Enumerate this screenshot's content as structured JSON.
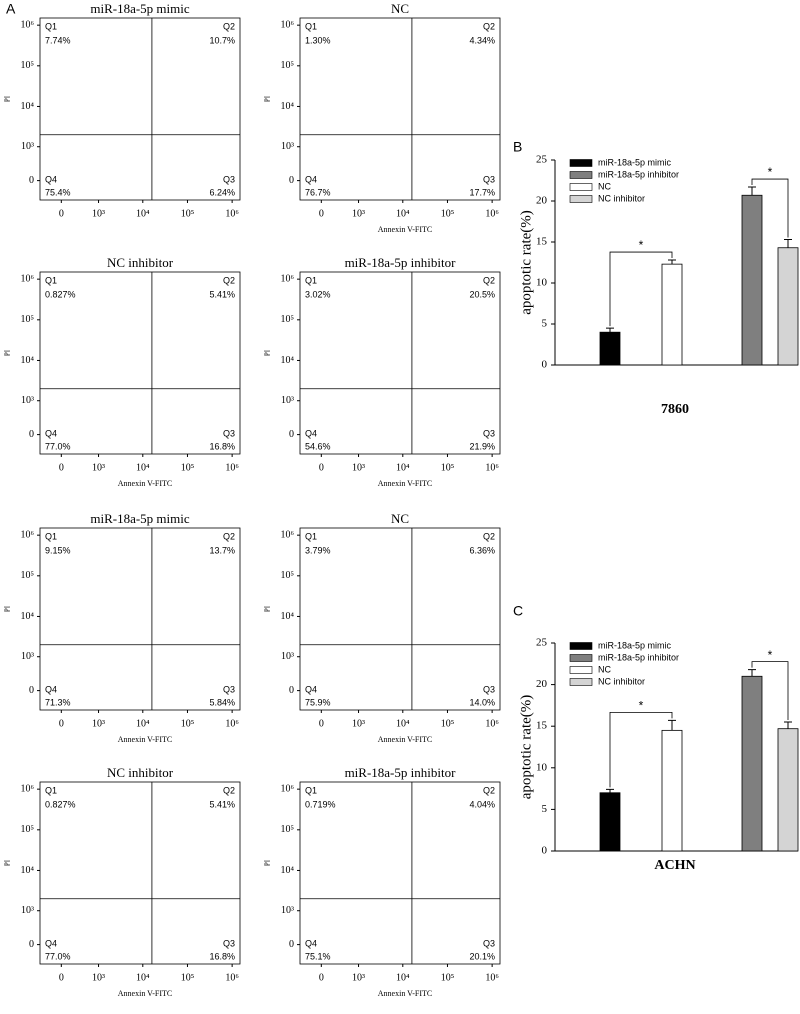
{
  "panel_labels": [
    "A",
    "B",
    "C"
  ],
  "chart_data": [
    {
      "type": "flow",
      "title": "miR-18a-5p mimic",
      "quadrant_names": [
        "Q1",
        "Q2",
        "Q3",
        "Q4"
      ],
      "values": [
        7.74,
        10.7,
        6.24,
        75.4
      ],
      "value_labels": [
        "7.74%",
        "10.7%",
        "6.24%",
        "75.4%"
      ],
      "ylabel": "PI",
      "xlim": [
        -400,
        1500000
      ],
      "ylim": [
        -400,
        1500000
      ],
      "xticks": [
        0,
        {
          "value": 1000,
          "label": "10³"
        },
        {
          "value": 10000,
          "label": "10⁴"
        },
        {
          "value": 100000,
          "label": "10⁵"
        },
        {
          "value": 1000000,
          "label": "10⁶"
        }
      ],
      "yticks": [
        0,
        {
          "value": 1000,
          "label": "10³"
        },
        {
          "value": 10000,
          "label": "10⁴"
        },
        {
          "value": 100000,
          "label": "10⁵"
        },
        {
          "value": 1000000,
          "label": "10⁶"
        }
      ],
      "gate": [
        16000,
        2000
      ]
    },
    {
      "type": "flow",
      "title": "NC",
      "quadrant_names": [
        "Q1",
        "Q2",
        "Q3",
        "Q4"
      ],
      "values": [
        1.3,
        4.34,
        17.7,
        76.7
      ],
      "value_labels": [
        "1.30%",
        "4.34%",
        "17.7%",
        "76.7%"
      ],
      "xlabel": "Annexin V-FITC",
      "ylabel": "PI",
      "xlim": [
        -400,
        1500000
      ],
      "ylim": [
        -400,
        1500000
      ],
      "xticks": [
        0,
        {
          "value": 1000,
          "label": "10³"
        },
        {
          "value": 10000,
          "label": "10⁴"
        },
        {
          "value": 100000,
          "label": "10⁵"
        },
        {
          "value": 1000000,
          "label": "10⁶"
        }
      ],
      "yticks": [
        0,
        {
          "value": 1000,
          "label": "10³"
        },
        {
          "value": 10000,
          "label": "10⁴"
        },
        {
          "value": 100000,
          "label": "10⁵"
        },
        {
          "value": 1000000,
          "label": "10⁶"
        }
      ],
      "gate": [
        16000,
        2000
      ]
    },
    {
      "type": "flow",
      "title": "NC inhibitor",
      "quadrant_names": [
        "Q1",
        "Q2",
        "Q3",
        "Q4"
      ],
      "values": [
        0.827,
        5.41,
        16.8,
        77.0
      ],
      "value_labels": [
        "0.827%",
        "5.41%",
        "16.8%",
        "77.0%"
      ],
      "xlabel": "Annexin V-FITC",
      "ylabel": "PI",
      "xlim": [
        -400,
        1500000
      ],
      "ylim": [
        -400,
        1500000
      ],
      "xticks": [
        0,
        {
          "value": 1000,
          "label": "10³"
        },
        {
          "value": 10000,
          "label": "10⁴"
        },
        {
          "value": 100000,
          "label": "10⁵"
        },
        {
          "value": 1000000,
          "label": "10⁶"
        }
      ],
      "yticks": [
        0,
        {
          "value": 1000,
          "label": "10³"
        },
        {
          "value": 10000,
          "label": "10⁴"
        },
        {
          "value": 100000,
          "label": "10⁵"
        },
        {
          "value": 1000000,
          "label": "10⁶"
        }
      ],
      "gate": [
        16000,
        2000
      ]
    },
    {
      "type": "flow",
      "title": "miR-18a-5p inhibitor",
      "quadrant_names": [
        "Q1",
        "Q2",
        "Q3",
        "Q4"
      ],
      "values": [
        3.02,
        20.5,
        21.9,
        54.6
      ],
      "value_labels": [
        "3.02%",
        "20.5%",
        "21.9%",
        "54.6%"
      ],
      "xlabel": "Annexin V-FITC",
      "ylabel": "PI",
      "xlim": [
        -400,
        1500000
      ],
      "ylim": [
        -400,
        1500000
      ],
      "xticks": [
        0,
        {
          "value": 1000,
          "label": "10³"
        },
        {
          "value": 10000,
          "label": "10⁴"
        },
        {
          "value": 100000,
          "label": "10⁵"
        },
        {
          "value": 1000000,
          "label": "10⁶"
        }
      ],
      "yticks": [
        0,
        {
          "value": 1000,
          "label": "10³"
        },
        {
          "value": 10000,
          "label": "10⁴"
        },
        {
          "value": 100000,
          "label": "10⁵"
        },
        {
          "value": 1000000,
          "label": "10⁶"
        }
      ],
      "gate": [
        16000,
        2000
      ]
    },
    {
      "type": "flow",
      "title": "miR-18a-5p mimic",
      "quadrant_names": [
        "Q1",
        "Q2",
        "Q3",
        "Q4"
      ],
      "values": [
        9.15,
        13.7,
        5.84,
        71.3
      ],
      "value_labels": [
        "9.15%",
        "13.7%",
        "5.84%",
        "71.3%"
      ],
      "xlabel": "Annexin V-FITC",
      "ylabel": "PI",
      "xlim": [
        -400,
        1500000
      ],
      "ylim": [
        -400,
        1500000
      ],
      "xticks": [
        0,
        {
          "value": 1000,
          "label": "10³"
        },
        {
          "value": 10000,
          "label": "10⁴"
        },
        {
          "value": 100000,
          "label": "10⁵"
        },
        {
          "value": 1000000,
          "label": "10⁶"
        }
      ],
      "yticks": [
        0,
        {
          "value": 1000,
          "label": "10³"
        },
        {
          "value": 10000,
          "label": "10⁴"
        },
        {
          "value": 100000,
          "label": "10⁵"
        },
        {
          "value": 1000000,
          "label": "10⁶"
        }
      ],
      "gate": [
        16000,
        2000
      ]
    },
    {
      "type": "flow",
      "title": "NC",
      "quadrant_names": [
        "Q1",
        "Q2",
        "Q3",
        "Q4"
      ],
      "values": [
        3.79,
        6.36,
        14.0,
        75.9
      ],
      "value_labels": [
        "3.79%",
        "6.36%",
        "14.0%",
        "75.9%"
      ],
      "xlabel": "Annexin V-FITC",
      "ylabel": "PI",
      "xlim": [
        -400,
        1500000
      ],
      "ylim": [
        -400,
        1500000
      ],
      "xticks": [
        0,
        {
          "value": 1000,
          "label": "10³"
        },
        {
          "value": 10000,
          "label": "10⁴"
        },
        {
          "value": 100000,
          "label": "10⁵"
        },
        {
          "value": 1000000,
          "label": "10⁶"
        }
      ],
      "yticks": [
        0,
        {
          "value": 1000,
          "label": "10³"
        },
        {
          "value": 10000,
          "label": "10⁴"
        },
        {
          "value": 100000,
          "label": "10⁵"
        },
        {
          "value": 1000000,
          "label": "10⁶"
        }
      ],
      "gate": [
        16000,
        2000
      ]
    },
    {
      "type": "flow",
      "title": "NC inhibitor",
      "quadrant_names": [
        "Q1",
        "Q2",
        "Q3",
        "Q4"
      ],
      "values": [
        0.827,
        5.41,
        16.8,
        77.0
      ],
      "value_labels": [
        "0.827%",
        "5.41%",
        "16.8%",
        "77.0%"
      ],
      "xlabel": "Annexin V-FITC",
      "ylabel": "PI",
      "xlim": [
        -400,
        1500000
      ],
      "ylim": [
        -400,
        1500000
      ],
      "xticks": [
        0,
        {
          "value": 1000,
          "label": "10³"
        },
        {
          "value": 10000,
          "label": "10⁴"
        },
        {
          "value": 100000,
          "label": "10⁵"
        },
        {
          "value": 1000000,
          "label": "10⁶"
        }
      ],
      "yticks": [
        0,
        {
          "value": 1000,
          "label": "10³"
        },
        {
          "value": 10000,
          "label": "10⁴"
        },
        {
          "value": 100000,
          "label": "10⁵"
        },
        {
          "value": 1000000,
          "label": "10⁶"
        }
      ],
      "gate": [
        16000,
        2000
      ]
    },
    {
      "type": "flow",
      "title": "miR-18a-5p inhibitor",
      "quadrant_names": [
        "Q1",
        "Q2",
        "Q3",
        "Q4"
      ],
      "values": [
        0.719,
        4.04,
        20.1,
        75.1
      ],
      "value_labels": [
        "0.719%",
        "4.04%",
        "20.1%",
        "75.1%"
      ],
      "xlabel": "Annexin V-FITC",
      "ylabel": "PI",
      "xlim": [
        -400,
        1500000
      ],
      "ylim": [
        -400,
        1500000
      ],
      "xticks": [
        0,
        {
          "value": 1000,
          "label": "10³"
        },
        {
          "value": 10000,
          "label": "10⁴"
        },
        {
          "value": 100000,
          "label": "10⁵"
        },
        {
          "value": 1000000,
          "label": "10⁶"
        }
      ],
      "yticks": [
        0,
        {
          "value": 1000,
          "label": "10³"
        },
        {
          "value": 10000,
          "label": "10⁴"
        },
        {
          "value": 100000,
          "label": "10⁵"
        },
        {
          "value": 1000000,
          "label": "10⁶"
        }
      ],
      "gate": [
        16000,
        2000
      ]
    },
    {
      "type": "bar",
      "xlabel": "7860",
      "ylabel": "apoptotic rate(%)",
      "ylim": [
        0,
        25
      ],
      "yticks": [
        0,
        5,
        10,
        15,
        20,
        25
      ],
      "series": [
        {
          "name": "miR-18a-5p mimic",
          "color": "#000000",
          "values": [
            4.0
          ],
          "errors": [
            0.5
          ]
        },
        {
          "name": "miR-18a-5p inhibitor",
          "color": "#7f7f7f",
          "values": [
            20.7
          ],
          "errors": [
            1.0
          ]
        },
        {
          "name": "NC",
          "color": "#ffffff",
          "values": [
            12.3
          ],
          "errors": [
            0.5
          ]
        },
        {
          "name": "NC inhibitor",
          "color": "#d4d4d4",
          "values": [
            14.3
          ],
          "errors": [
            1.0
          ]
        }
      ],
      "annotations": [
        "*",
        "*"
      ]
    },
    {
      "type": "bar",
      "xlabel": "ACHN",
      "ylabel": "apoptotic rate(%)",
      "ylim": [
        0,
        25
      ],
      "yticks": [
        0,
        5,
        10,
        15,
        20,
        25
      ],
      "series": [
        {
          "name": "miR-18a-5p mimic",
          "color": "#000000",
          "values": [
            7.0
          ],
          "errors": [
            0.4
          ]
        },
        {
          "name": "miR-18a-5p inhibitor",
          "color": "#7f7f7f",
          "values": [
            21.0
          ],
          "errors": [
            0.8
          ]
        },
        {
          "name": "NC",
          "color": "#ffffff",
          "values": [
            14.5
          ],
          "errors": [
            1.2
          ]
        },
        {
          "name": "NC inhibitor",
          "color": "#d4d4d4",
          "values": [
            14.7
          ],
          "errors": [
            0.8
          ]
        }
      ],
      "annotations": [
        "*",
        "*"
      ]
    }
  ]
}
